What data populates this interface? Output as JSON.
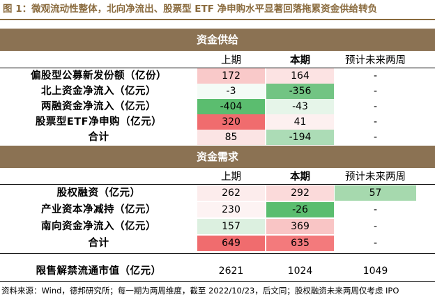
{
  "title": "图 1：微观流动性整体，北向净流出、股票型 ETF 净申购水平显著回落拖累资金供给转负",
  "supply": {
    "heading": "资金供给",
    "columns": [
      "上期",
      "本期",
      "预计未来两周"
    ],
    "rows": [
      {
        "label": "偏股型公募新发份额（亿份）",
        "prev": "172",
        "curr": "164",
        "next": "-",
        "prev_bg": "#f9c9c9",
        "curr_bg": "#fce3e3",
        "next_bg": ""
      },
      {
        "label": "北上资金净流入（亿元）",
        "prev": "-3",
        "curr": "-356",
        "next": "-",
        "prev_bg": "#f4fbf6",
        "curr_bg": "#72c483",
        "next_bg": ""
      },
      {
        "label": "两融资金净流入（亿元）",
        "prev": "-404",
        "curr": "-43",
        "next": "-",
        "prev_bg": "#5bbd6f",
        "curr_bg": "#e6f5e9",
        "next_bg": ""
      },
      {
        "label": "股票型ETF净申购（亿元）",
        "prev": "320",
        "curr": "41",
        "next": "-",
        "prev_bg": "#f06c6e",
        "curr_bg": "#fdf0f0",
        "next_bg": ""
      },
      {
        "label": "合计",
        "prev": "85",
        "curr": "-194",
        "next": "-",
        "prev_bg": "#fbe4e4",
        "curr_bg": "#acdcb6",
        "next_bg": ""
      }
    ]
  },
  "demand": {
    "heading": "资金需求",
    "columns": [
      "上期",
      "本期",
      "预计未来两周"
    ],
    "rows": [
      {
        "label": "股权融资（亿元）",
        "prev": "262",
        "curr": "292",
        "next": "57",
        "prev_bg": "#fcecec",
        "curr_bg": "#fbdada",
        "next_bg": "#a6d9ae"
      },
      {
        "label": "产业资本净减持（亿元）",
        "prev": "230",
        "curr": "-26",
        "next": "-",
        "prev_bg": "#fdf3f3",
        "curr_bg": "#5bbd6f",
        "next_bg": ""
      },
      {
        "label": "南向资金净流入（亿元）",
        "prev": "157",
        "curr": "369",
        "next": "-",
        "prev_bg": "#dcf0e0",
        "curr_bg": "#f9c5c5",
        "next_bg": ""
      },
      {
        "label": "合计",
        "prev": "649",
        "curr": "635",
        "next": "-",
        "prev_bg": "#f06c6e",
        "curr_bg": "#f37a7c",
        "next_bg": ""
      }
    ]
  },
  "unlock": {
    "label": "限售解禁流通市值（亿元）",
    "prev": "2621",
    "curr": "1024",
    "next": "1049"
  },
  "footer": "资料来源：Wind，德邦研究所；每一期为两周维度，截至 2022/10/23，后文同；股权融资未来两周仅考虑 IPO"
}
